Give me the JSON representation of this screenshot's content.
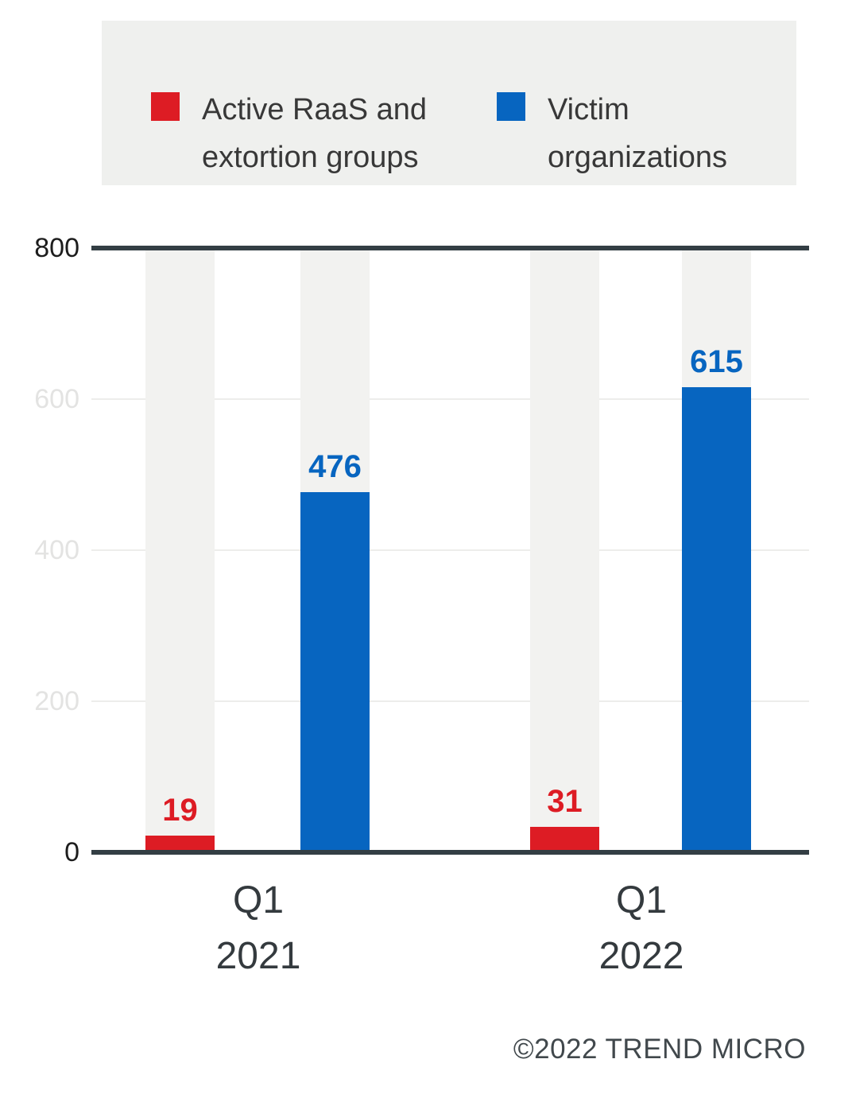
{
  "chart_data": {
    "type": "bar",
    "title": "",
    "categories": [
      "Q1 2021",
      "Q1 2022"
    ],
    "category_lines": [
      [
        "Q1",
        "2021"
      ],
      [
        "Q1",
        "2022"
      ]
    ],
    "series": [
      {
        "name": "Active RaaS and extortion groups",
        "legend_lines": [
          "Active RaaS and",
          "extortion groups"
        ],
        "color": "#dd1c24",
        "values": [
          19,
          31
        ]
      },
      {
        "name": "Victim organizations",
        "legend_lines": [
          "Victim",
          "organizations"
        ],
        "color": "#0765c0",
        "values": [
          476,
          615
        ]
      }
    ],
    "ylim": [
      0,
      800
    ],
    "yticks": [
      800,
      600,
      400,
      200,
      0
    ],
    "grid": true,
    "legend_position": "top",
    "value_labels": true
  },
  "footer": {
    "credit": "©2022 TREND MICRO"
  },
  "style": {
    "red": "#dd1c24",
    "blue": "#0765c0",
    "axis_line": "#333e44",
    "grid_line": "#ededeb",
    "column_bg": "#f2f2f0",
    "legend_bg": "#eff0ee",
    "tick_dark": "#1d1d1d",
    "tick_light": "#e3e3e2",
    "label_dark": "#343a3e",
    "footer_color": "#41484c",
    "legend_text": "#383838"
  }
}
